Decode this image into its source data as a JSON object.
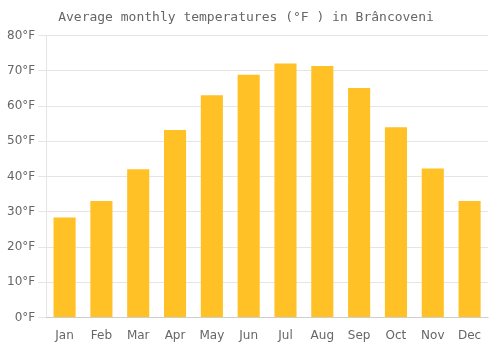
{
  "chart_data": {
    "type": "bar",
    "title": "Average monthly temperatures (°F ) in Brâncoveni",
    "categories": [
      "Jan",
      "Feb",
      "Mar",
      "Apr",
      "May",
      "Jun",
      "Jul",
      "Aug",
      "Sep",
      "Oct",
      "Nov",
      "Dec"
    ],
    "values": [
      28.4,
      33.1,
      42.1,
      53.2,
      63.1,
      68.9,
      72.1,
      71.4,
      65.1,
      54.0,
      42.3,
      33.1
    ],
    "color": "#FFC125",
    "ylim": [
      0,
      80
    ],
    "yticks": [
      {
        "value": 0,
        "label": "0°F"
      },
      {
        "value": 10,
        "label": "10°F"
      },
      {
        "value": 20,
        "label": "20°F"
      },
      {
        "value": 30,
        "label": "30°F"
      },
      {
        "value": 40,
        "label": "40°F"
      },
      {
        "value": 50,
        "label": "50°F"
      },
      {
        "value": 60,
        "label": "60°F"
      },
      {
        "value": 70,
        "label": "70°F"
      },
      {
        "value": 80,
        "label": "80°F"
      }
    ],
    "grid": true
  }
}
